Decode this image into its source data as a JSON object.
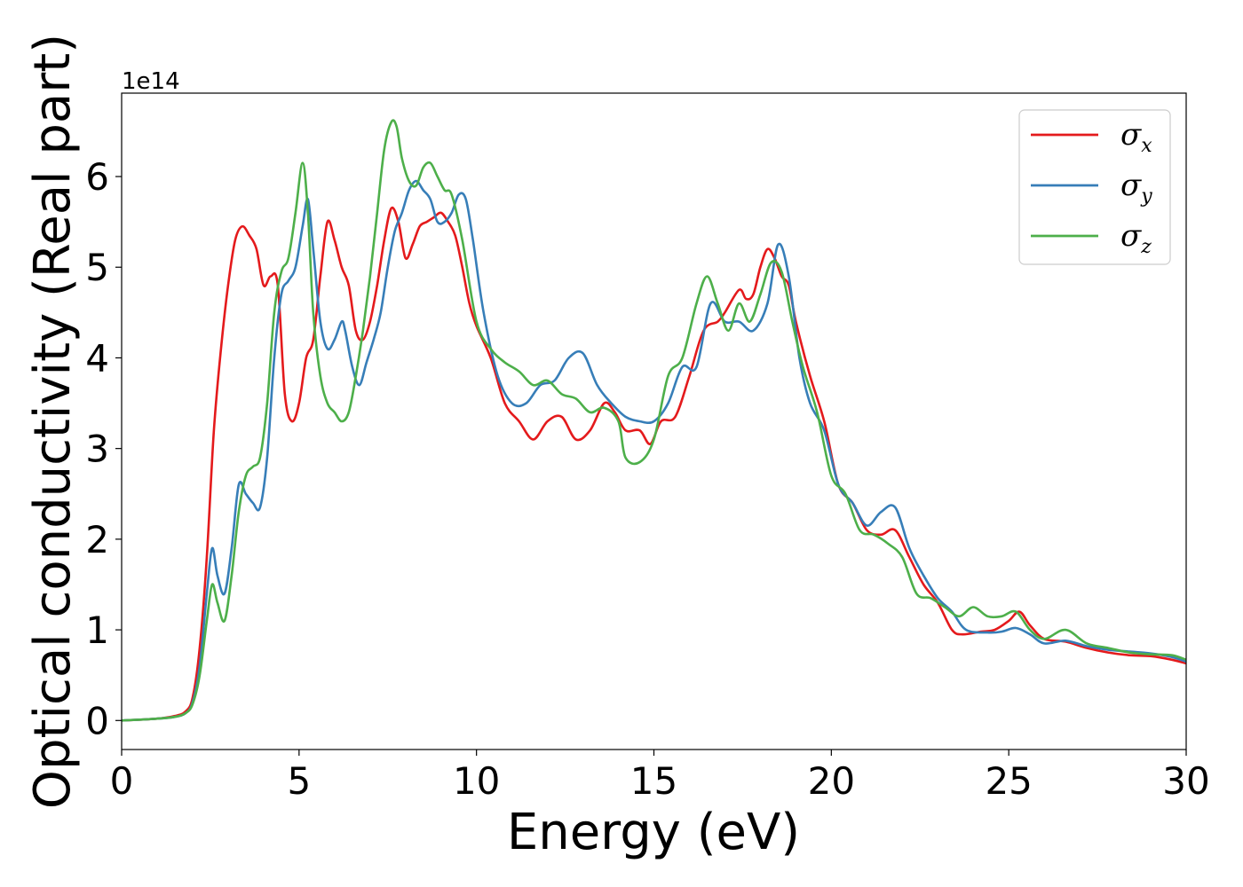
{
  "chart_data": {
    "type": "line",
    "title": "",
    "xlabel": "Energy (eV)",
    "ylabel": "Optical conductivity (Real part)",
    "y_offset_label": "1e14",
    "xlim": [
      0,
      30
    ],
    "ylim": [
      -0.32,
      6.92
    ],
    "x_ticks": [
      0,
      5,
      10,
      15,
      20,
      25,
      30
    ],
    "y_ticks": [
      0,
      1,
      2,
      3,
      4,
      5,
      6
    ],
    "grid": false,
    "legend_position": "top-right",
    "series": [
      {
        "name": "σx",
        "base": "σ",
        "sub": "x",
        "color": "#e41a1c",
        "x": [
          0,
          1,
          1.5,
          1.8,
          2.0,
          2.2,
          2.4,
          2.6,
          2.8,
          3.0,
          3.2,
          3.4,
          3.6,
          3.8,
          4.0,
          4.2,
          4.4,
          4.6,
          4.8,
          5.0,
          5.2,
          5.4,
          5.6,
          5.8,
          6.0,
          6.2,
          6.4,
          6.6,
          6.8,
          7.0,
          7.2,
          7.4,
          7.6,
          7.8,
          8.0,
          8.2,
          8.4,
          8.6,
          8.8,
          9.0,
          9.2,
          9.4,
          9.6,
          9.8,
          10.0,
          10.4,
          10.8,
          11.2,
          11.6,
          12.0,
          12.4,
          12.8,
          13.2,
          13.6,
          13.9,
          14.2,
          14.6,
          14.9,
          15.2,
          15.6,
          16.0,
          16.4,
          16.8,
          17.0,
          17.4,
          17.6,
          17.8,
          18.0,
          18.2,
          18.4,
          18.6,
          18.8,
          19.0,
          19.4,
          19.8,
          20.2,
          20.6,
          21.0,
          21.4,
          21.8,
          22.2,
          22.6,
          23.0,
          23.4,
          23.7,
          24.2,
          24.6,
          25.0,
          25.3,
          25.6,
          26.0,
          26.6,
          27.2,
          27.8,
          28.4,
          29.0,
          29.6,
          30.0
        ],
        "y": [
          0,
          0.02,
          0.05,
          0.1,
          0.25,
          0.8,
          1.8,
          3.2,
          4.1,
          4.8,
          5.3,
          5.45,
          5.35,
          5.2,
          4.8,
          4.9,
          4.8,
          3.6,
          3.3,
          3.5,
          4.0,
          4.2,
          4.9,
          5.5,
          5.3,
          5.0,
          4.8,
          4.3,
          4.2,
          4.4,
          4.8,
          5.3,
          5.65,
          5.5,
          5.1,
          5.25,
          5.45,
          5.5,
          5.55,
          5.6,
          5.5,
          5.35,
          5.0,
          4.6,
          4.35,
          4.0,
          3.5,
          3.3,
          3.1,
          3.3,
          3.35,
          3.1,
          3.2,
          3.5,
          3.4,
          3.2,
          3.2,
          3.05,
          3.3,
          3.35,
          3.8,
          4.3,
          4.4,
          4.5,
          4.75,
          4.65,
          4.7,
          5.0,
          5.2,
          5.1,
          4.9,
          4.8,
          4.4,
          3.8,
          3.3,
          2.6,
          2.4,
          2.1,
          2.05,
          2.1,
          1.8,
          1.5,
          1.3,
          1.0,
          0.95,
          0.98,
          1.0,
          1.1,
          1.2,
          1.05,
          0.9,
          0.87,
          0.8,
          0.75,
          0.72,
          0.71,
          0.67,
          0.63
        ]
      },
      {
        "name": "σy",
        "base": "σ",
        "sub": "y",
        "color": "#377eb8",
        "x": [
          0,
          1,
          1.5,
          1.8,
          2.0,
          2.2,
          2.4,
          2.55,
          2.7,
          2.9,
          3.1,
          3.3,
          3.5,
          3.7,
          3.9,
          4.1,
          4.3,
          4.5,
          4.7,
          4.9,
          5.1,
          5.25,
          5.4,
          5.6,
          5.8,
          6.0,
          6.2,
          6.3,
          6.5,
          6.7,
          6.9,
          7.1,
          7.3,
          7.5,
          7.7,
          7.9,
          8.1,
          8.3,
          8.5,
          8.7,
          8.9,
          9.1,
          9.3,
          9.5,
          9.7,
          9.9,
          10.2,
          10.6,
          11.0,
          11.4,
          11.8,
          12.2,
          12.6,
          13.0,
          13.4,
          13.8,
          14.2,
          14.6,
          15.0,
          15.4,
          15.8,
          16.2,
          16.6,
          17.0,
          17.4,
          17.8,
          18.2,
          18.5,
          18.8,
          19.1,
          19.4,
          19.8,
          20.2,
          20.6,
          21.0,
          21.4,
          21.8,
          22.2,
          22.6,
          23.0,
          23.4,
          23.8,
          24.4,
          24.8,
          25.2,
          25.6,
          26.0,
          26.6,
          27.2,
          27.8,
          28.4,
          29.0,
          29.6,
          30.0
        ],
        "y": [
          0,
          0.02,
          0.04,
          0.08,
          0.2,
          0.6,
          1.4,
          1.9,
          1.6,
          1.4,
          1.9,
          2.6,
          2.5,
          2.4,
          2.35,
          2.9,
          4.0,
          4.7,
          4.85,
          5.0,
          5.45,
          5.75,
          5.2,
          4.4,
          4.1,
          4.2,
          4.4,
          4.3,
          3.9,
          3.7,
          3.95,
          4.2,
          4.5,
          5.0,
          5.4,
          5.6,
          5.85,
          5.95,
          5.85,
          5.75,
          5.5,
          5.5,
          5.6,
          5.8,
          5.75,
          5.3,
          4.5,
          3.8,
          3.5,
          3.5,
          3.7,
          3.75,
          4.0,
          4.05,
          3.7,
          3.5,
          3.35,
          3.3,
          3.3,
          3.5,
          3.9,
          3.9,
          4.6,
          4.4,
          4.4,
          4.3,
          4.6,
          5.25,
          4.9,
          4.0,
          3.5,
          3.2,
          2.6,
          2.4,
          2.15,
          2.3,
          2.35,
          1.9,
          1.6,
          1.35,
          1.2,
          1.0,
          0.97,
          0.98,
          1.02,
          0.95,
          0.85,
          0.88,
          0.82,
          0.78,
          0.76,
          0.74,
          0.7,
          0.65
        ]
      },
      {
        "name": "σz",
        "base": "σ",
        "sub": "z",
        "color": "#4daf4a",
        "x": [
          0,
          1,
          1.5,
          1.8,
          2.0,
          2.2,
          2.4,
          2.55,
          2.7,
          2.9,
          3.1,
          3.3,
          3.5,
          3.7,
          3.9,
          4.1,
          4.3,
          4.5,
          4.7,
          4.9,
          5.1,
          5.25,
          5.4,
          5.6,
          5.8,
          6.0,
          6.2,
          6.4,
          6.6,
          6.8,
          7.0,
          7.2,
          7.4,
          7.6,
          7.75,
          7.9,
          8.1,
          8.3,
          8.5,
          8.7,
          8.9,
          9.1,
          9.3,
          9.6,
          10.0,
          10.4,
          10.8,
          11.2,
          11.6,
          12.0,
          12.4,
          12.8,
          13.2,
          13.6,
          14.0,
          14.2,
          14.6,
          15.0,
          15.4,
          15.8,
          16.2,
          16.5,
          16.8,
          17.1,
          17.4,
          17.7,
          18.0,
          18.3,
          18.6,
          18.9,
          19.2,
          19.6,
          20.0,
          20.4,
          20.8,
          21.2,
          21.6,
          22.0,
          22.4,
          22.8,
          23.2,
          23.6,
          24.0,
          24.4,
          24.8,
          25.2,
          25.6,
          26.0,
          26.6,
          27.2,
          27.8,
          28.4,
          29.0,
          29.6,
          30.0
        ],
        "y": [
          0,
          0.02,
          0.04,
          0.08,
          0.18,
          0.5,
          1.1,
          1.5,
          1.3,
          1.1,
          1.6,
          2.3,
          2.7,
          2.8,
          2.9,
          3.5,
          4.5,
          4.95,
          5.1,
          5.6,
          6.15,
          5.6,
          4.5,
          3.8,
          3.5,
          3.4,
          3.3,
          3.4,
          3.8,
          4.3,
          4.9,
          5.6,
          6.3,
          6.6,
          6.55,
          6.2,
          5.95,
          5.9,
          6.1,
          6.15,
          6.0,
          5.85,
          5.8,
          5.3,
          4.4,
          4.1,
          3.95,
          3.85,
          3.7,
          3.75,
          3.6,
          3.55,
          3.4,
          3.45,
          3.3,
          2.9,
          2.85,
          3.1,
          3.8,
          4.0,
          4.6,
          4.9,
          4.6,
          4.3,
          4.6,
          4.4,
          4.7,
          5.05,
          4.95,
          4.4,
          3.9,
          3.4,
          2.7,
          2.5,
          2.1,
          2.05,
          1.95,
          1.8,
          1.4,
          1.35,
          1.25,
          1.15,
          1.25,
          1.15,
          1.15,
          1.2,
          1.0,
          0.9,
          1.0,
          0.85,
          0.8,
          0.75,
          0.73,
          0.72,
          0.67
        ]
      }
    ]
  }
}
